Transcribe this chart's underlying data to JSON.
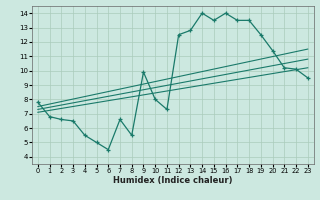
{
  "xlabel": "Humidex (Indice chaleur)",
  "ylabel": "",
  "bg_color": "#cce8e0",
  "grid_color": "#aaccbb",
  "line_color": "#1a7a6a",
  "xlim": [
    -0.5,
    23.5
  ],
  "ylim": [
    3.5,
    14.5
  ],
  "xticks": [
    0,
    1,
    2,
    3,
    4,
    5,
    6,
    7,
    8,
    9,
    10,
    11,
    12,
    13,
    14,
    15,
    16,
    17,
    18,
    19,
    20,
    21,
    22,
    23
  ],
  "yticks": [
    4,
    5,
    6,
    7,
    8,
    9,
    10,
    11,
    12,
    13,
    14
  ],
  "line1_x": [
    0,
    1,
    2,
    3,
    4,
    5,
    6,
    7,
    8,
    9,
    10,
    11,
    12,
    13,
    14,
    15,
    16,
    17,
    18,
    19,
    20,
    21,
    22,
    23
  ],
  "line1_y": [
    7.8,
    6.8,
    6.6,
    6.5,
    5.5,
    5.0,
    4.5,
    6.6,
    5.5,
    9.9,
    8.0,
    7.3,
    12.5,
    12.8,
    14.0,
    13.5,
    14.0,
    13.5,
    13.5,
    12.5,
    11.4,
    10.2,
    10.1,
    9.5
  ],
  "line2_x": [
    0,
    23
  ],
  "line2_y": [
    7.5,
    11.5
  ],
  "line3_x": [
    0,
    23
  ],
  "line3_y": [
    7.3,
    10.8
  ],
  "line4_x": [
    0,
    23
  ],
  "line4_y": [
    7.1,
    10.2
  ]
}
